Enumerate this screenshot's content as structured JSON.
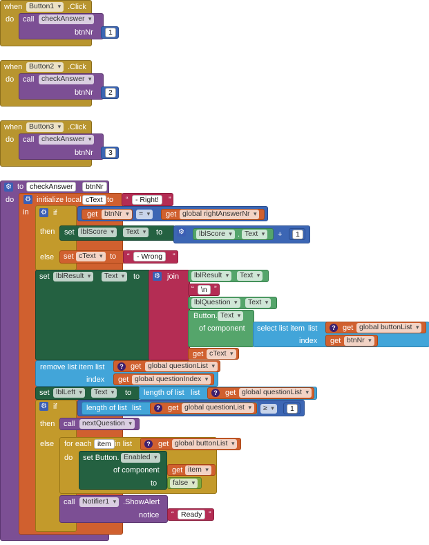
{
  "events": [
    {
      "when": "when",
      "component": "Button1",
      "event": ".Click",
      "do": "do",
      "call": "call",
      "proc": "checkAnswer",
      "param": "btnNr",
      "value": "1"
    },
    {
      "when": "when",
      "component": "Button2",
      "event": ".Click",
      "do": "do",
      "call": "call",
      "proc": "checkAnswer",
      "param": "btnNr",
      "value": "2"
    },
    {
      "when": "when",
      "component": "Button3",
      "event": ".Click",
      "do": "do",
      "call": "call",
      "proc": "checkAnswer",
      "param": "btnNr",
      "value": "3"
    }
  ],
  "proc": {
    "to": "to",
    "name": "checkAnswer",
    "param": "btnNr",
    "do": "do",
    "in": "in",
    "init_local": "initialize local",
    "local_name": "cText",
    "to2": "to",
    "right_text": " - Right! ",
    "if": "if",
    "get": "get",
    "btnNr": "btnNr",
    "eq": "=",
    "right_answer": "global rightAnswerNr",
    "then": "then",
    "set": "set",
    "lblScore": "lblScore",
    "text_prop": "Text",
    "plus": "+",
    "one": "1",
    "else": "else",
    "ctext": "cText",
    "wrong_text": " - Wrong ",
    "lblResult": "lblResult",
    "join": "join",
    "newline": "\\n",
    "lblQuestion": "lblQuestion",
    "button_text": "Button.",
    "of_component": "of component",
    "select_list": "select list item",
    "list_kw": "list",
    "button_list": "global buttonList",
    "index_kw": "index",
    "remove_list": "remove list item",
    "question_list": "global questionList",
    "question_index": "global questionIndex",
    "lblLeft": "lblLeft",
    "length_list": "length of list",
    "gte": "≥",
    "call": "call",
    "next_question": "nextQuestion",
    "for_each": "for each",
    "item": "item",
    "in_list": "in list",
    "set_button": "set Button.",
    "enabled": "Enabled",
    "false_val": "false",
    "notifier": "Notifier1",
    "show_alert": ".ShowAlert",
    "notice": "notice",
    "ready": " Ready "
  },
  "colors": {
    "event": "#b8952f",
    "procedure": "#7c4f94",
    "variable": "#d0602f",
    "control": "#c39a2b",
    "math": "#3c66b4",
    "component": "#246141",
    "text": "#b42d54",
    "list": "#42a5d9",
    "logic": "#7ea83f"
  }
}
